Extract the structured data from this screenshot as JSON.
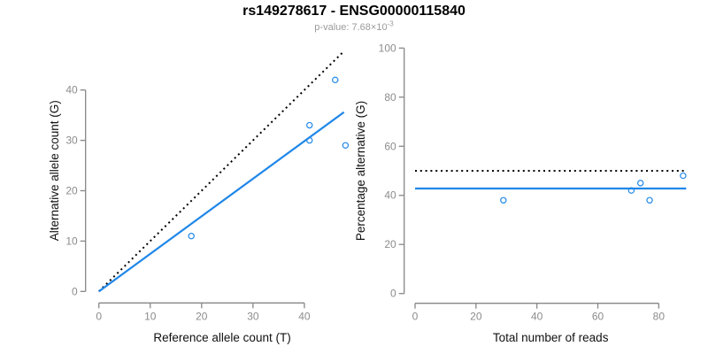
{
  "header": {
    "title": "rs149278617 - ENSG00000115840",
    "subtitle_prefix": "p-value: 7.68×10",
    "subtitle_exponent": "-3"
  },
  "colors": {
    "accent_blue": "#1f87e8",
    "line_black": "#000000",
    "axis_gray": "#878787",
    "tick_label_gray": "#8c8c8c",
    "axis_title_black": "#111111",
    "subtitle_gray": "#9a9a9a"
  },
  "chart_data": [
    {
      "type": "scatter",
      "panel": "left",
      "xlabel": "Reference allele count (T)",
      "ylabel": "Alternative allele count (G)",
      "xticks": [
        0,
        10,
        20,
        30,
        40
      ],
      "yticks": [
        0,
        10,
        20,
        30,
        40
      ],
      "xlim": [
        0,
        48
      ],
      "ylim": [
        0,
        48
      ],
      "grid": false,
      "points": [
        [
          18,
          11
        ],
        [
          41,
          30
        ],
        [
          41,
          33
        ],
        [
          46,
          42
        ],
        [
          48,
          29
        ]
      ],
      "lines": [
        {
          "name": "identity-line",
          "style": "dotted",
          "color_key": "line_black",
          "from": [
            0,
            0
          ],
          "to": [
            47.7,
            47.7
          ]
        },
        {
          "name": "regression-line",
          "style": "solid",
          "color_key": "accent_blue",
          "from": [
            0,
            0
          ],
          "to": [
            47.7,
            35.6
          ]
        }
      ]
    },
    {
      "type": "scatter",
      "panel": "right",
      "xlabel": "Total number of reads",
      "ylabel": "Percentage alternative (G)",
      "xticks": [
        0,
        20,
        40,
        60,
        80
      ],
      "yticks": [
        0,
        20,
        40,
        60,
        80,
        100
      ],
      "xlim": [
        0,
        89
      ],
      "ylim": [
        0,
        100
      ],
      "grid": false,
      "points": [
        [
          29,
          38
        ],
        [
          71,
          42
        ],
        [
          74,
          45
        ],
        [
          77,
          38
        ],
        [
          88,
          48
        ]
      ],
      "lines": [
        {
          "name": "expected-50pct-line",
          "style": "dotted",
          "color_key": "line_black",
          "from": [
            0,
            50
          ],
          "to": [
            89,
            50
          ]
        },
        {
          "name": "mean-percentage-line",
          "style": "solid",
          "color_key": "accent_blue",
          "from": [
            0,
            42.8
          ],
          "to": [
            89,
            42.8
          ]
        }
      ]
    }
  ]
}
